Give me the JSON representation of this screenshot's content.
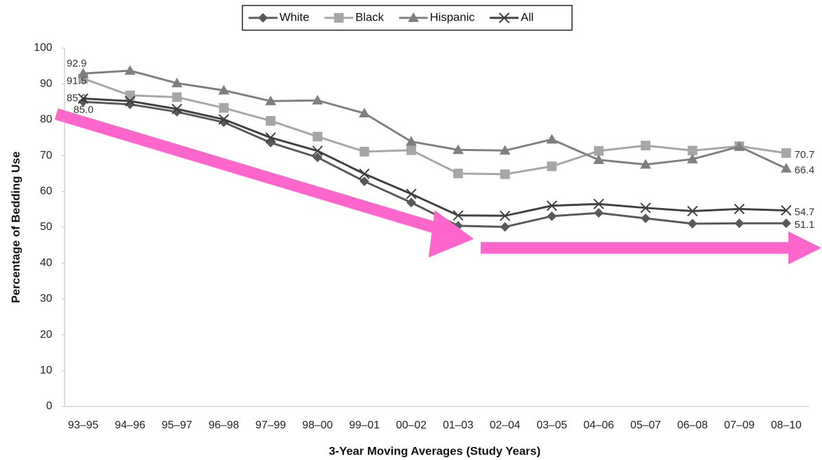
{
  "chart_data": {
    "type": "line",
    "x_label": "3-Year Moving Averages (Study Years)",
    "y_label": "Percentage of Bedding Use",
    "categories": [
      "93–95",
      "94–96",
      "95–97",
      "96–98",
      "97–99",
      "98–00",
      "99–01",
      "00–02",
      "01–03",
      "02–04",
      "03–05",
      "04–06",
      "05–07",
      "06–08",
      "07–09",
      "08–10"
    ],
    "ylim": [
      0,
      100
    ],
    "yticks": [
      0,
      10,
      20,
      30,
      40,
      50,
      60,
      70,
      80,
      90,
      100
    ],
    "grid": false,
    "legend": "top",
    "series": [
      {
        "name": "White",
        "color": "#595959",
        "marker": "diamond",
        "values": [
          85.0,
          84.3,
          82.2,
          79.3,
          73.6,
          69.5,
          62.8,
          56.9,
          50.4,
          50.1,
          53.1,
          54.0,
          52.5,
          51.0,
          51.1,
          51.1
        ],
        "value_labels": [
          "85.0",
          null,
          null,
          null,
          null,
          null,
          null,
          null,
          null,
          null,
          null,
          null,
          null,
          null,
          null,
          "51.1"
        ]
      },
      {
        "name": "Black",
        "color": "#a6a6a6",
        "marker": "square",
        "values": [
          91.5,
          86.8,
          86.3,
          83.3,
          79.7,
          75.3,
          71.1,
          71.5,
          65.0,
          64.8,
          67.0,
          71.3,
          72.8,
          71.4,
          72.6,
          70.7
        ],
        "value_labels": [
          "91.5",
          null,
          null,
          null,
          null,
          null,
          null,
          null,
          null,
          null,
          null,
          null,
          null,
          null,
          null,
          "70.7"
        ]
      },
      {
        "name": "Hispanic",
        "color": "#7f7f7f",
        "marker": "triangle",
        "values": [
          92.9,
          93.7,
          90.2,
          88.2,
          85.2,
          85.4,
          81.8,
          73.9,
          71.6,
          71.4,
          74.5,
          68.8,
          67.5,
          69.0,
          72.5,
          66.4
        ],
        "value_labels": [
          "92.9",
          null,
          null,
          null,
          null,
          null,
          null,
          null,
          null,
          null,
          null,
          null,
          null,
          null,
          null,
          "66.4"
        ]
      },
      {
        "name": "All",
        "color": "#404040",
        "marker": "x",
        "values": [
          85.9,
          85.2,
          83.0,
          80.1,
          75.0,
          71.3,
          64.9,
          59.3,
          53.3,
          53.2,
          56.0,
          56.5,
          55.4,
          54.5,
          55.1,
          54.7
        ],
        "value_labels": [
          "85.9",
          null,
          null,
          null,
          null,
          null,
          null,
          null,
          null,
          null,
          null,
          null,
          null,
          null,
          null,
          "54.7"
        ]
      }
    ]
  }
}
